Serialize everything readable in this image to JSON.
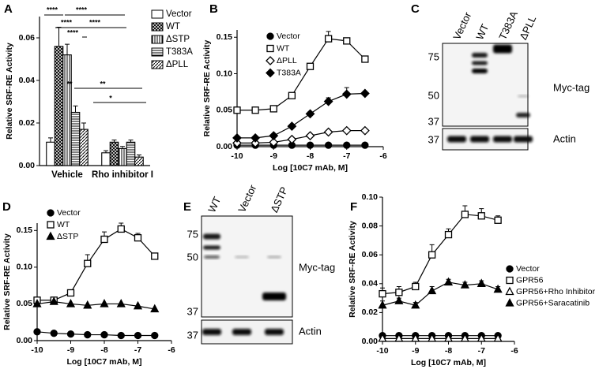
{
  "chart_data": [
    {
      "type": "grouped_bar",
      "panel": "A",
      "ylabel": "Relative SRF-RE Activity",
      "categories": [
        "Vehicle",
        "Rho inhibitor I"
      ],
      "series": [
        {
          "name": "Vector",
          "color": "#000000",
          "pattern": "none",
          "values": [
            0.011,
            0.006
          ],
          "errors": [
            0.002,
            0.001
          ]
        },
        {
          "name": "WT",
          "color": "#000000",
          "pattern": "crosshatch",
          "values": [
            0.056,
            0.011
          ],
          "errors": [
            0.009,
            0.001
          ]
        },
        {
          "name": "ΔSTP",
          "color": "#000000",
          "pattern": "vertical",
          "values": [
            0.052,
            0.008
          ],
          "errors": [
            0.005,
            0.001
          ]
        },
        {
          "name": "T383A",
          "color": "#000000",
          "pattern": "horizontal",
          "values": [
            0.025,
            0.011
          ],
          "errors": [
            0.003,
            0.001
          ]
        },
        {
          "name": "ΔPLL",
          "color": "#000000",
          "pattern": "diagonal",
          "values": [
            0.017,
            0.004
          ],
          "errors": [
            0.003,
            0.001
          ]
        }
      ],
      "ylim": [
        0,
        0.07
      ],
      "yticks": [
        {
          "value": 0,
          "label": "0.00"
        },
        {
          "value": 0.02,
          "label": "0.02"
        },
        {
          "value": 0.04,
          "label": "0.04"
        },
        {
          "value": 0.06,
          "label": "0.06"
        }
      ],
      "annotations": [
        "****",
        "****",
        "****",
        "****",
        "****",
        "**",
        "**",
        "*"
      ],
      "legend": "right"
    },
    {
      "type": "line",
      "panel": "B",
      "ylabel": "Relative SRF-RE Activity",
      "xlabel": "Log [10C7 mAb, M]",
      "x": [
        -10,
        -9.5,
        -9,
        -8.5,
        -8,
        -7.5,
        -7,
        -6.5
      ],
      "series": [
        {
          "name": "Vector",
          "color": "#000000",
          "marker": "circle",
          "filled": true,
          "values": [
            0.002,
            0.002,
            0.002,
            0.002,
            0.002,
            0.002,
            0.002,
            0.002
          ]
        },
        {
          "name": "WT",
          "color": "#000000",
          "marker": "square",
          "filled": false,
          "values": [
            0.05,
            0.05,
            0.052,
            0.07,
            0.11,
            0.148,
            0.145,
            0.12
          ],
          "errors": [
            0.003,
            0.002,
            0.002,
            0.003,
            0.004,
            0.01,
            0.004,
            0.004
          ]
        },
        {
          "name": "ΔPLL",
          "color": "#000000",
          "marker": "diamond",
          "filled": false,
          "values": [
            0.005,
            0.005,
            0.006,
            0.01,
            0.015,
            0.02,
            0.022,
            0.022
          ]
        },
        {
          "name": "T383A",
          "color": "#000000",
          "marker": "diamond",
          "filled": true,
          "values": [
            0.012,
            0.012,
            0.015,
            0.028,
            0.045,
            0.062,
            0.072,
            0.073
          ],
          "errors": [
            0.001,
            0.001,
            0.001,
            0.002,
            0.003,
            0.005,
            0.009,
            0.002
          ]
        }
      ],
      "xlim": [
        -10,
        -6
      ],
      "xticks": [
        -10,
        -9,
        -8,
        -7,
        -6
      ],
      "ylim": [
        0,
        0.16
      ],
      "yticks": [
        {
          "value": 0,
          "label": "0.00"
        },
        {
          "value": 0.05,
          "label": "0.05"
        },
        {
          "value": 0.1,
          "label": "0.10"
        },
        {
          "value": 0.15,
          "label": "0.15"
        }
      ],
      "legend": "upper left"
    },
    {
      "type": "line",
      "panel": "D",
      "ylabel": "Relative SRF-RE Activity",
      "xlabel": "Log [10C7 mAb, M]",
      "x": [
        -10,
        -9.5,
        -9,
        -8.5,
        -8,
        -7.5,
        -7,
        -6.5
      ],
      "series": [
        {
          "name": "Vector",
          "color": "#000000",
          "marker": "circle",
          "filled": true,
          "values": [
            0.012,
            0.01,
            0.009,
            0.008,
            0.008,
            0.007,
            0.007,
            0.007
          ]
        },
        {
          "name": "WT",
          "color": "#000000",
          "marker": "square",
          "filled": false,
          "values": [
            0.055,
            0.055,
            0.065,
            0.105,
            0.138,
            0.152,
            0.14,
            0.115
          ],
          "errors": [
            0.003,
            0.002,
            0.003,
            0.012,
            0.01,
            0.008,
            0.006,
            0.003
          ]
        },
        {
          "name": "ΔSTP",
          "color": "#000000",
          "marker": "triangle",
          "filled": true,
          "values": [
            0.05,
            0.053,
            0.05,
            0.048,
            0.05,
            0.05,
            0.047,
            0.043
          ]
        }
      ],
      "xlim": [
        -10,
        -6
      ],
      "xticks": [
        -10,
        -9,
        -8,
        -7,
        -6
      ],
      "ylim": [
        0,
        0.16
      ],
      "yticks": [
        {
          "value": 0,
          "label": "0.00"
        },
        {
          "value": 0.05,
          "label": "0.05"
        },
        {
          "value": 0.1,
          "label": "0.10"
        },
        {
          "value": 0.15,
          "label": "0.15"
        }
      ],
      "legend": "upper left"
    },
    {
      "type": "line",
      "panel": "F",
      "ylabel": "Relative SRF-RE Activity",
      "xlabel": "Log [10C7 mAb, M]",
      "x": [
        -10,
        -9.5,
        -9,
        -8.5,
        -8,
        -7.5,
        -7,
        -6.5
      ],
      "series": [
        {
          "name": "Vector",
          "color": "#000000",
          "marker": "circle",
          "filled": true,
          "values": [
            0.004,
            0.004,
            0.004,
            0.004,
            0.004,
            0.004,
            0.004,
            0.004
          ]
        },
        {
          "name": "GPR56",
          "color": "#000000",
          "marker": "square",
          "filled": false,
          "values": [
            0.033,
            0.034,
            0.038,
            0.06,
            0.074,
            0.088,
            0.087,
            0.084
          ],
          "errors": [
            0.004,
            0.004,
            0.003,
            0.007,
            0.004,
            0.006,
            0.005,
            0.003
          ]
        },
        {
          "name": "GPR56+Rho Inhibitor",
          "color": "#000000",
          "marker": "triangle",
          "filled": false,
          "values": [
            0.002,
            0.002,
            0.002,
            0.002,
            0.002,
            0.002,
            0.002,
            0.002
          ]
        },
        {
          "name": "GPR56+Saracatinib",
          "color": "#000000",
          "marker": "triangle",
          "filled": true,
          "values": [
            0.025,
            0.028,
            0.025,
            0.035,
            0.041,
            0.039,
            0.04,
            0.036
          ],
          "errors": [
            0.003,
            0.002,
            0.002,
            0.003,
            0.002,
            0.002,
            0.002,
            0.002
          ]
        }
      ],
      "xlim": [
        -10,
        -6
      ],
      "xticks": [
        -10,
        -9,
        -8,
        -7,
        -6
      ],
      "ylim": [
        0,
        0.1
      ],
      "yticks": [
        {
          "value": 0,
          "label": "0.00"
        },
        {
          "value": 0.02,
          "label": "0.02"
        },
        {
          "value": 0.04,
          "label": "0.04"
        },
        {
          "value": 0.06,
          "label": "0.06"
        },
        {
          "value": 0.08,
          "label": "0.08"
        },
        {
          "value": 0.1,
          "label": "0.10"
        }
      ],
      "legend": "right"
    }
  ],
  "blots": [
    {
      "panel": "C",
      "lanes": [
        "Vector",
        "WT",
        "T383A",
        "ΔPLL"
      ],
      "markers": [
        "75",
        "50",
        "37",
        "37"
      ],
      "labels": [
        "Myc-tag",
        "Actin"
      ]
    },
    {
      "panel": "E",
      "lanes": [
        "WT",
        "Vector",
        "ΔSTP"
      ],
      "markers": [
        "75",
        "50",
        "37",
        "37"
      ],
      "labels": [
        "Myc-tag",
        "Actin"
      ]
    }
  ]
}
